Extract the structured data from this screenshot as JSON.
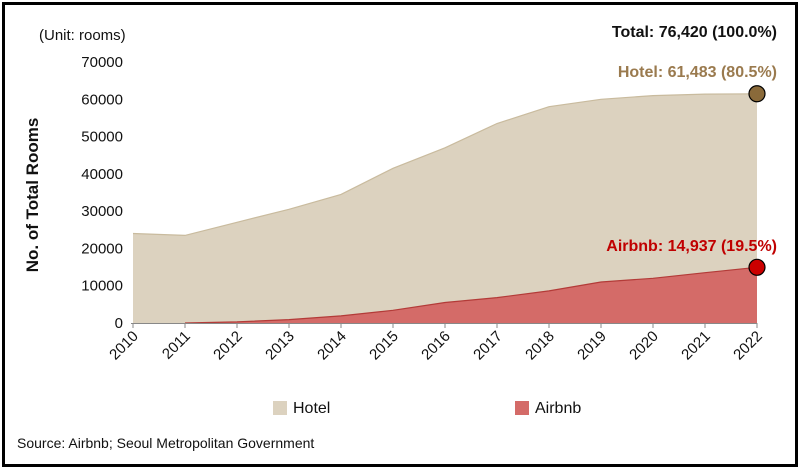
{
  "chart_data": {
    "type": "area",
    "unit_note": "(Unit: rooms)",
    "ylabel": "No. of Total Rooms",
    "xlabel": "",
    "ylim": [
      0,
      70000
    ],
    "yticks": [
      0,
      10000,
      20000,
      30000,
      40000,
      50000,
      60000,
      70000
    ],
    "x": [
      "2010",
      "2011",
      "2012",
      "2013",
      "2014",
      "2015",
      "2016",
      "2017",
      "2018",
      "2019",
      "2020",
      "2021",
      "2022"
    ],
    "series": [
      {
        "name": "Hotel",
        "color": "#dcd2bf",
        "stroke": "#c9bb9e",
        "values": [
          24000,
          23500,
          27000,
          30500,
          34500,
          41500,
          47000,
          53500,
          58000,
          60000,
          61000,
          61400,
          61483
        ]
      },
      {
        "name": "Airbnb",
        "color": "#d46b68",
        "stroke": "#b33b38",
        "values": [
          null,
          0,
          300,
          900,
          1900,
          3400,
          5500,
          6800,
          8600,
          11000,
          12000,
          13500,
          14937
        ]
      }
    ],
    "annotations": {
      "total": "Total: 76,420 (100.0%)",
      "hotel": "Hotel: 61,483 (80.5%)",
      "airbnb": "Airbnb: 14,937 (19.5%)"
    },
    "marker_colors": {
      "hotel": "#8a6a3a",
      "airbnb": "#cc0000"
    },
    "legend": {
      "position": "bottom",
      "items": [
        "Hotel",
        "Airbnb"
      ]
    },
    "grid": false
  },
  "source": "Source: Airbnb; Seoul Metropolitan Government"
}
